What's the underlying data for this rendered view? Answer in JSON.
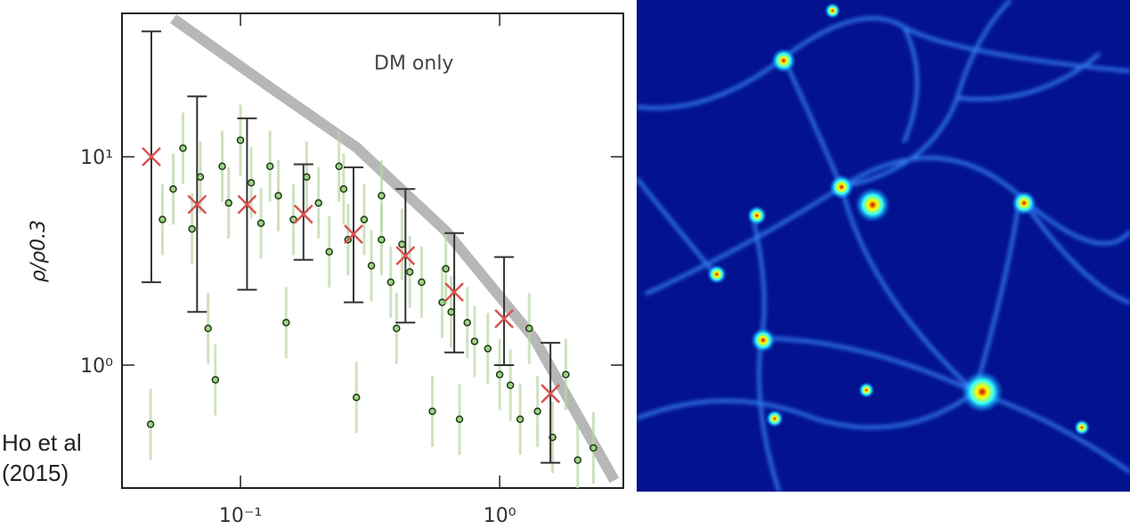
{
  "chart_data": {
    "type": "scatter",
    "ylabel": "ρ/ρ0.3",
    "annotation": "DM only",
    "xlog": true,
    "ylog": true,
    "xlim": [
      0.0349,
      3.0
    ],
    "ylim": [
      0.257,
      48.8
    ],
    "xticks": [
      {
        "value": 0.1,
        "label": "10⁻¹"
      },
      {
        "value": 1,
        "label": "10⁰"
      }
    ],
    "yticks": [
      {
        "value": 1,
        "label": "10⁰"
      },
      {
        "value": 10,
        "label": "10¹"
      }
    ],
    "series": [
      {
        "color": "#4a8a3a",
        "x": [
          0.045,
          0.05,
          0.055,
          0.06,
          0.065,
          0.07,
          0.075,
          0.08,
          0.085,
          0.09,
          0.1,
          0.11,
          0.12,
          0.13,
          0.14,
          0.15,
          0.16,
          0.18,
          0.2,
          0.22,
          0.24,
          0.26,
          0.28,
          0.3,
          0.32,
          0.35,
          0.38,
          0.4,
          0.42,
          0.45,
          0.5,
          0.55,
          0.6,
          0.65,
          0.7,
          0.75,
          0.8,
          0.9,
          1.0,
          1.1,
          1.2,
          1.4,
          1.6,
          1.8,
          2.0,
          2.3,
          0.62,
          1.3,
          0.35,
          0.25
        ],
        "y": [
          0.52,
          5,
          7,
          11,
          4.5,
          8,
          1.5,
          0.85,
          9,
          6,
          12,
          7.5,
          4.8,
          9,
          6.5,
          1.6,
          5,
          8,
          6,
          3.5,
          9,
          4,
          0.7,
          5,
          3,
          4,
          2.5,
          1.5,
          3.8,
          2.8,
          2.5,
          0.6,
          2,
          1.8,
          0.55,
          1.6,
          1.3,
          1.2,
          0.9,
          0.8,
          0.55,
          0.6,
          0.45,
          0.9,
          0.35,
          0.4,
          2.9,
          1.5,
          6.5,
          7
        ]
      }
    ],
    "binned": {
      "color": "#d9534f",
      "x": [
        0.0453,
        0.068,
        0.106,
        0.175,
        0.273,
        0.433,
        0.668,
        1.04,
        1.57
      ],
      "y": [
        10,
        5.9,
        5.9,
        5.3,
        4.25,
        3.35,
        2.24,
        1.67,
        0.73
      ],
      "y_low": [
        2.5,
        1.8,
        2.3,
        3.2,
        2.0,
        1.6,
        1.15,
        1.0,
        0.34
      ],
      "y_high": [
        40,
        19.5,
        15.3,
        9.2,
        8.9,
        7.0,
        4.3,
        3.3,
        1.28
      ]
    },
    "model": {
      "color": "#999999",
      "x": [
        0.055,
        0.127,
        0.28,
        0.62,
        1.36,
        2.77
      ],
      "y": [
        46,
        22,
        11.1,
        4.4,
        1.34,
        0.28
      ]
    }
  }
}
